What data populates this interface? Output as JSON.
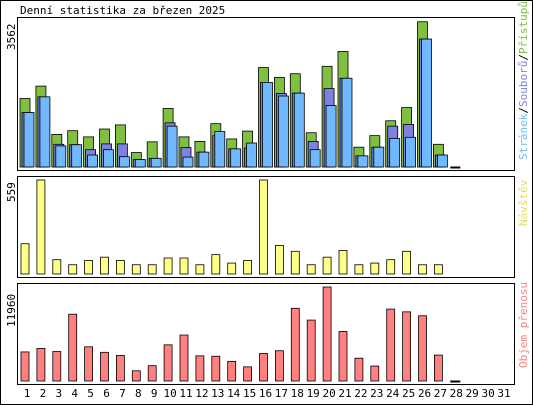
{
  "chart_data": {
    "type": "bar",
    "title": "Denní statistika za březen 2025",
    "categories": [
      "1",
      "2",
      "3",
      "4",
      "5",
      "6",
      "7",
      "8",
      "9",
      "10",
      "11",
      "12",
      "13",
      "14",
      "15",
      "16",
      "17",
      "18",
      "19",
      "20",
      "21",
      "22",
      "23",
      "24",
      "25",
      "26",
      "27",
      "28",
      "29",
      "30",
      "31"
    ],
    "weekend_days": [
      "1",
      "2",
      "8",
      "9",
      "15",
      "16",
      "22",
      "23",
      "29",
      "30"
    ],
    "panels": [
      {
        "id": "hits",
        "ymax_label": "3562",
        "ymax": 3562,
        "legend": {
          "pristupu": "Přístupů",
          "souboru": "Souborů",
          "stranek": "Stránek",
          "sep": "/"
        },
        "series": [
          {
            "name": "Přístupů",
            "color": "#80c040",
            "values": [
              1660,
              1960,
              790,
              880,
              730,
              920,
              1020,
              350,
              610,
              1420,
              730,
              620,
              1050,
              680,
              870,
              2410,
              2170,
              2260,
              830,
              2440,
              2800,
              480,
              760,
              1120,
              1440,
              3520,
              550,
              0,
              0,
              0,
              0
            ]
          },
          {
            "name": "Souborů",
            "color": "#8080e0",
            "values": [
              1320,
              1700,
              550,
              540,
              420,
              560,
              560,
              180,
              210,
              1070,
              470,
              360,
              760,
              440,
              460,
              2050,
              1780,
              1790,
              620,
              1900,
              2150,
              270,
              480,
              990,
              1030,
              3100,
              290,
              0,
              0,
              0,
              0
            ]
          },
          {
            "name": "Stránek",
            "color": "#70b8ff",
            "values": [
              1320,
              1700,
              510,
              540,
              290,
              420,
              250,
              180,
              210,
              990,
              240,
              360,
              860,
              440,
              580,
              2050,
              1720,
              1790,
              420,
              1490,
              2150,
              270,
              480,
              690,
              720,
              3100,
              290,
              0,
              0,
              0,
              0
            ]
          }
        ]
      },
      {
        "id": "visits",
        "ymax_label": "559",
        "ymax": 559,
        "legend": {
          "label": "Návštěv"
        },
        "series": [
          {
            "name": "Návštěv",
            "color": "#ffff88",
            "values": [
              180,
              559,
              85,
              55,
              80,
              100,
              80,
              55,
              55,
              95,
              95,
              55,
              115,
              65,
              80,
              559,
              170,
              135,
              55,
              100,
              140,
              55,
              65,
              85,
              135,
              55,
              55,
              0,
              0,
              0,
              0
            ]
          }
        ]
      },
      {
        "id": "traffic",
        "ymax_label": "11960",
        "ymax": 11960,
        "legend": {
          "label": "Objem přenosu"
        },
        "series": [
          {
            "name": "Objem přenosu",
            "color": "#ff8080",
            "values": [
              3700,
              4150,
              3750,
              8500,
              4350,
              3650,
              3250,
              1300,
              1950,
              4600,
              5850,
              3200,
              3150,
              2500,
              1800,
              3500,
              3850,
              9250,
              7750,
              11960,
              6300,
              2900,
              1900,
              9150,
              8800,
              8300,
              3300,
              0,
              0,
              0,
              0
            ]
          }
        ]
      }
    ]
  },
  "colors": {
    "pristupu": "#80c040",
    "souboru": "#8080e0",
    "stranek": "#70b8ff",
    "navstev": "#ffff88",
    "objem": "#ff8080",
    "weekday_label": "#000000",
    "weekend_label": "#00a000"
  }
}
